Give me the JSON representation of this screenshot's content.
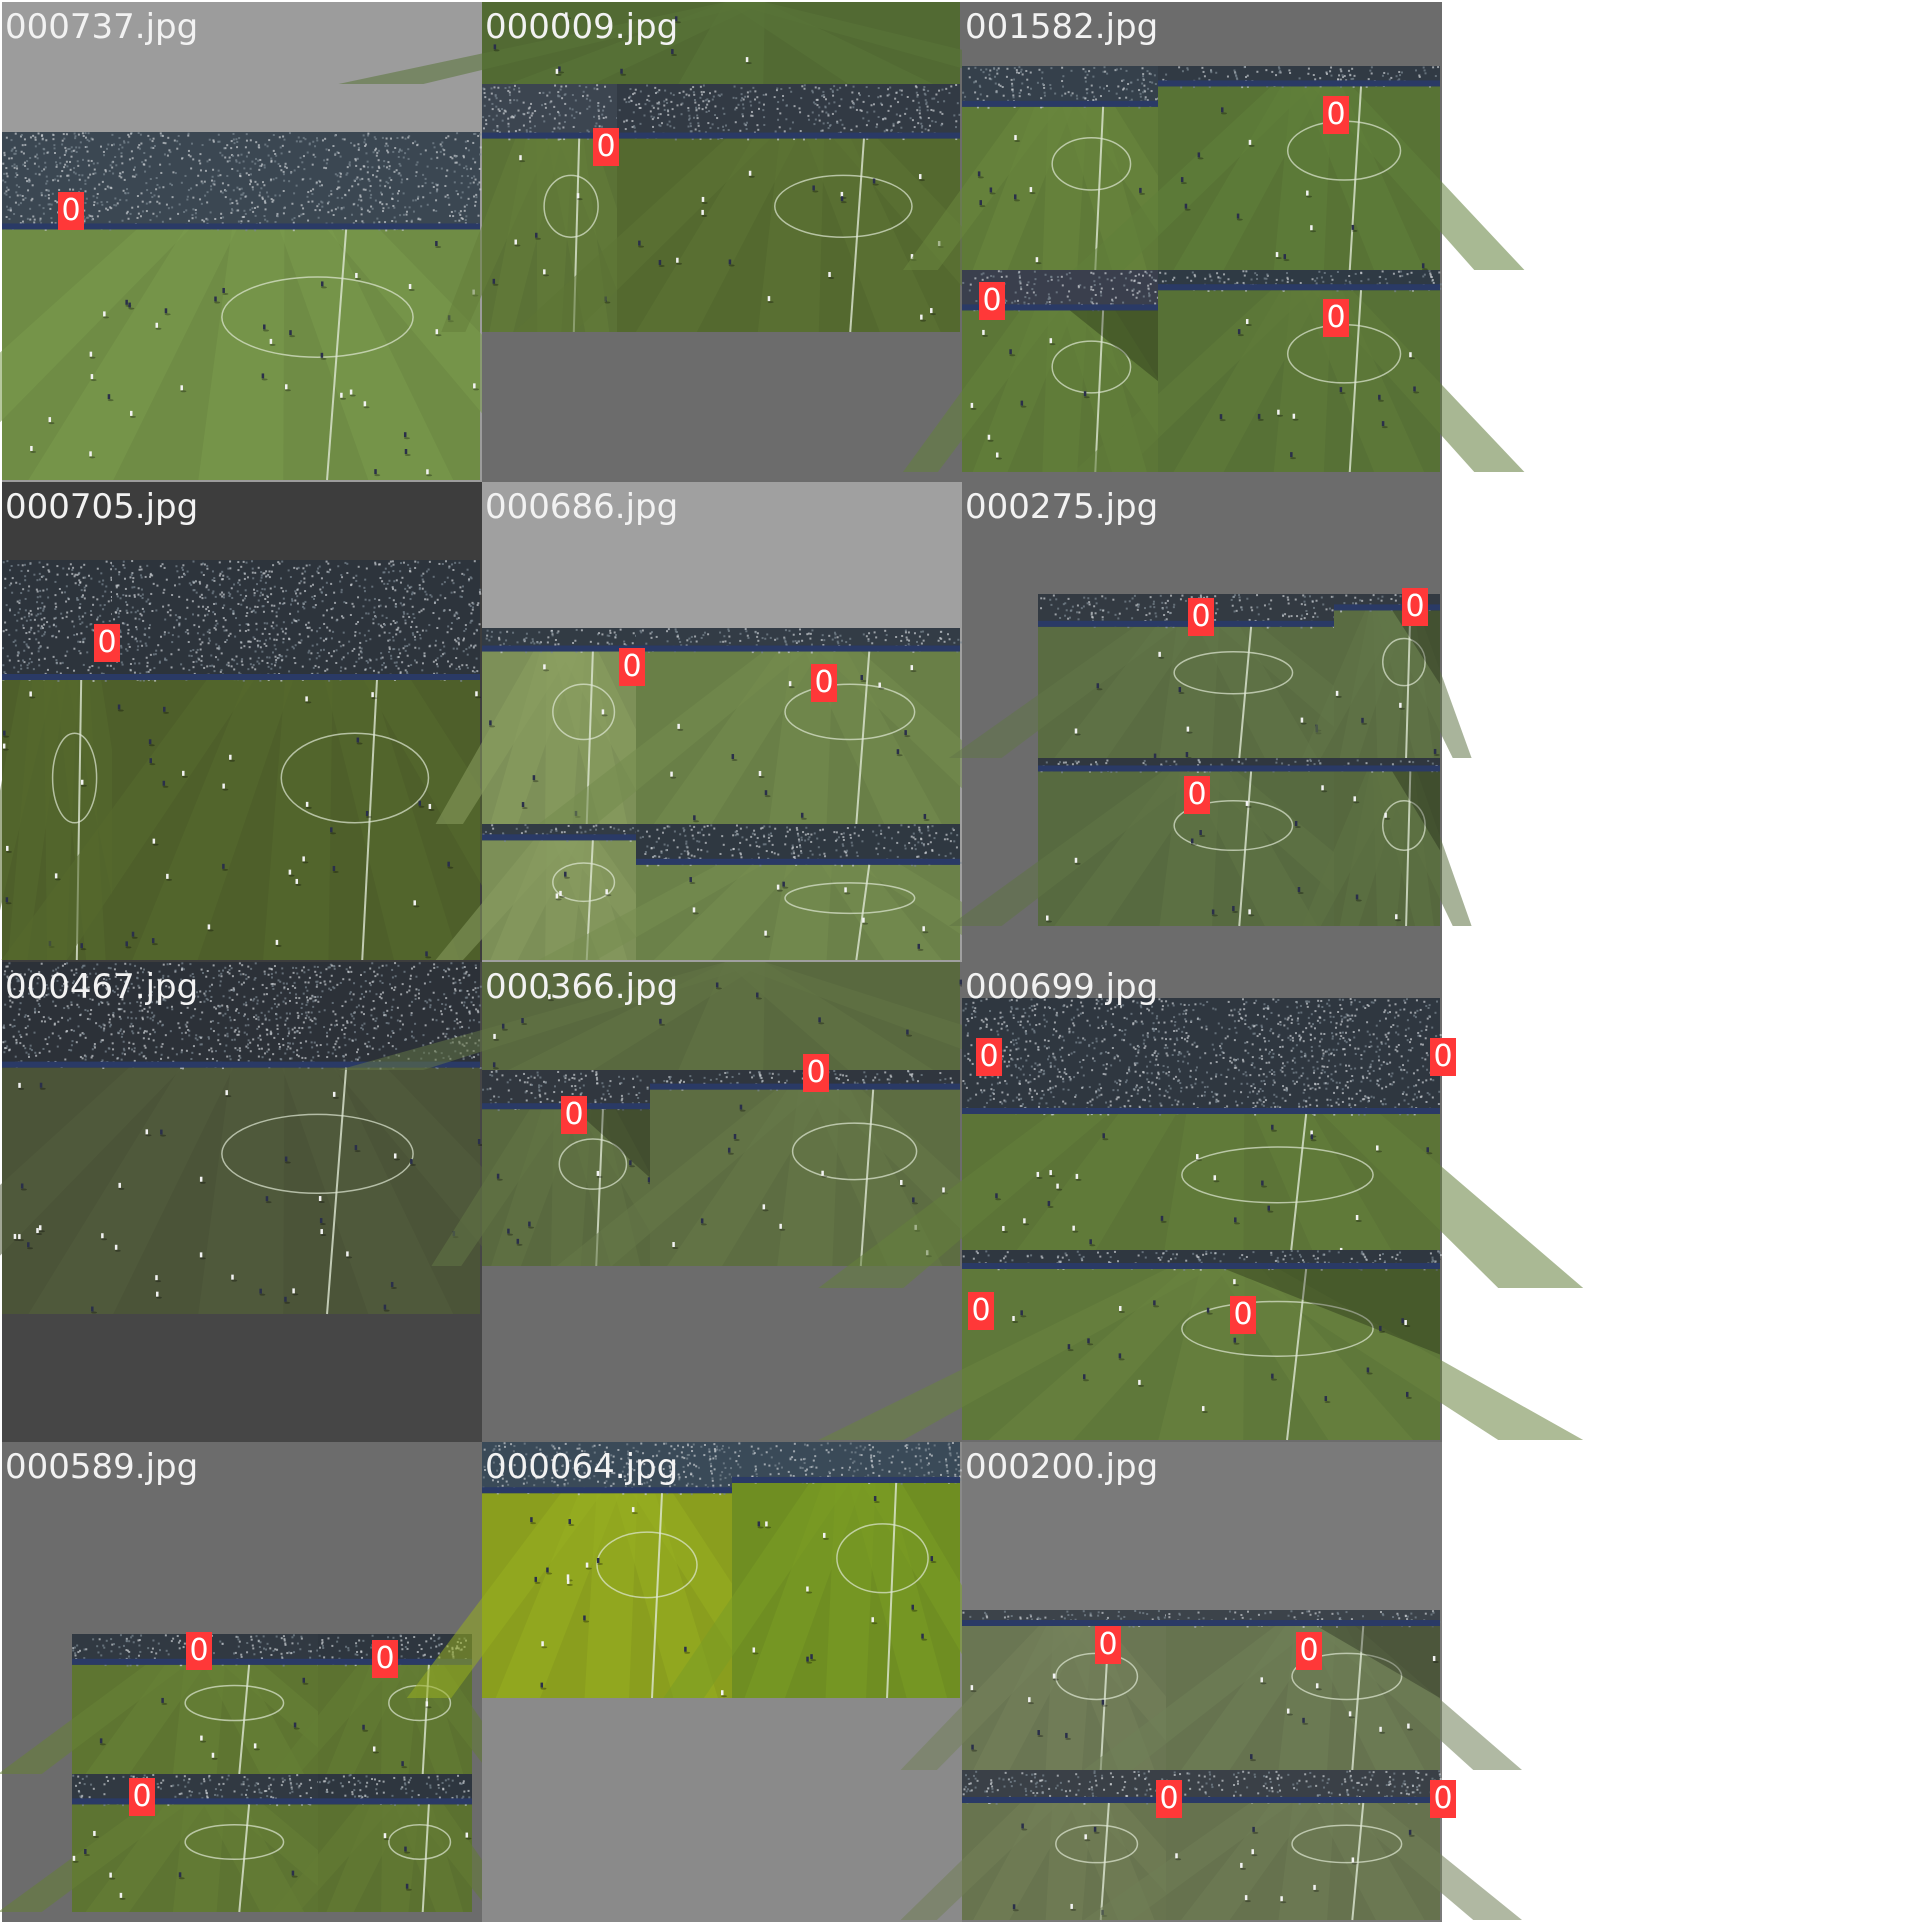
{
  "colors": {
    "box": "#ff3838",
    "text": "#f2f2f2"
  },
  "tiles": [
    {
      "filename": "000737.jpg",
      "fill": "#9c9c9c",
      "pieces": [
        {
          "style": "l",
          "grass": "#6f8c45",
          "crowd": "#3b4752",
          "crowdFrac": 0.28
        }
      ],
      "labels": [
        "0"
      ]
    },
    {
      "filename": "000009.jpg",
      "fill": "#6c6c6c",
      "pieces": [
        {
          "style": "m",
          "grass": "#5b7236",
          "crowd": "#3c4550",
          "crowdFrac": 0.22
        },
        {
          "style": "r",
          "grass": "#54692f",
          "crowd": "#323a44",
          "crowdFrac": 0.22
        },
        {
          "style": "t",
          "grass": "#526a33",
          "crowd": "#2e353d",
          "crowdFrac": 0.0
        }
      ],
      "labels": [
        "0"
      ]
    },
    {
      "filename": "001582.jpg",
      "fill": "#6c6c6c",
      "pieces": [
        {
          "style": "m",
          "grass": "#5f7a38",
          "crowd": "#35404b",
          "crowdFrac": 0.2
        },
        {
          "style": "m",
          "grass": "#587335",
          "crowd": "#313a44",
          "crowdFrac": 0.1
        },
        {
          "style": "s",
          "grass": "#5c7637",
          "crowd": "#3a3f4d",
          "crowdFrac": 0.2
        },
        {
          "style": "m",
          "grass": "#577136",
          "crowd": "#2f3a44",
          "crowdFrac": 0.1
        }
      ],
      "labels": [
        "0",
        "0",
        "0"
      ]
    },
    {
      "filename": "000705.jpg",
      "fill": "#3d3d3d",
      "pieces": [
        {
          "style": "m",
          "grass": "#4e5f2a",
          "crowd": "#2d343c",
          "crowdFrac": 0.3
        }
      ],
      "labels": [
        "0"
      ]
    },
    {
      "filename": "000686.jpg",
      "fill": "#a0a0a0",
      "pieces": [
        {
          "style": "l",
          "grass": "#7d9058",
          "crowd": "#323b44",
          "crowdFrac": 0.12
        },
        {
          "style": "m",
          "grass": "#697f47",
          "crowd": "#333c46",
          "crowdFrac": 0.12
        },
        {
          "style": "l",
          "grass": "#7c8f57",
          "crowd": "#323b44",
          "crowdFrac": 0.12
        },
        {
          "style": "m",
          "grass": "#6b8149",
          "crowd": "#2f3841",
          "crowdFrac": 0.3
        }
      ],
      "labels": [
        "0",
        "0"
      ]
    },
    {
      "filename": "000275.jpg",
      "fill": "#6c6c6c",
      "pieces": [
        {
          "style": "m",
          "grass": "#5a6c42",
          "crowd": "#333a42",
          "crowdFrac": 0.2
        },
        {
          "style": "s",
          "grass": "#5a6c42",
          "crowd": "#333a42",
          "crowdFrac": 0.1
        },
        {
          "style": "m",
          "grass": "#576a40",
          "crowd": "#30373f",
          "crowdFrac": 0.08
        },
        {
          "style": "s",
          "grass": "#56683e",
          "crowd": "#30373f",
          "crowdFrac": 0.08
        }
      ],
      "labels": [
        "0",
        "0",
        "0"
      ]
    },
    {
      "filename": "000467.jpg",
      "fill": "#464646",
      "pieces": [
        {
          "style": "m",
          "grass": "#4b5438",
          "crowd": "#2c3138",
          "crowdFrac": 0.3
        }
      ],
      "labels": []
    },
    {
      "filename": "000366.jpg",
      "fill": "#6c6c6c",
      "pieces": [
        {
          "style": "t",
          "grass": "#59693f",
          "crowd": "#2e3339",
          "crowdFrac": 0.0
        },
        {
          "style": "s",
          "grass": "#59693f",
          "crowd": "#31373f",
          "crowdFrac": 0.2
        },
        {
          "style": "m",
          "grass": "#5d6d42",
          "crowd": "#30363e",
          "crowdFrac": 0.1
        }
      ],
      "labels": [
        "0",
        "0"
      ]
    },
    {
      "filename": "000699.jpg",
      "fill": "#6c6c6c",
      "pieces": [
        {
          "style": "m",
          "grass": "#5c7437",
          "crowd": "#2f3740",
          "crowdFrac": 0.4
        },
        {
          "style": "s",
          "grass": "#5f783a",
          "crowd": "#2f3740",
          "crowdFrac": 0.1
        }
      ],
      "labels": [
        "0",
        "0",
        "0",
        "0"
      ]
    },
    {
      "filename": "000589.jpg",
      "fill": "#6c6c6c",
      "pieces": [
        {
          "style": "m",
          "grass": "#5e7531",
          "crowd": "#313942",
          "crowdFrac": 0.22
        },
        {
          "style": "m",
          "grass": "#5c7230",
          "crowd": "#2e363f",
          "crowdFrac": 0.22
        },
        {
          "style": "m",
          "grass": "#5d7432",
          "crowd": "#313942",
          "crowdFrac": 0.22
        },
        {
          "style": "m",
          "grass": "#5b7130",
          "crowd": "#2e363f",
          "crowdFrac": 0.22
        }
      ],
      "labels": [
        "0",
        "0",
        "0"
      ]
    },
    {
      "filename": "000064.jpg",
      "fill": "#8a8a8a",
      "pieces": [
        {
          "style": "m",
          "grass": "#8a9e1e",
          "crowd": "#3a4a58",
          "crowdFrac": 0.2
        },
        {
          "style": "m",
          "grass": "#6f8e22",
          "crowd": "#3a4a58",
          "crowdFrac": 0.16
        }
      ],
      "labels": []
    },
    {
      "filename": "000200.jpg",
      "fill": "#7a7a7a",
      "pieces": [
        {
          "style": "m",
          "grass": "#6a7653",
          "crowd": "#3c434a",
          "crowdFrac": 0.1
        },
        {
          "style": "s",
          "grass": "#66734f",
          "crowd": "#3c434a",
          "crowdFrac": 0.1
        },
        {
          "style": "m",
          "grass": "#68744f",
          "crowd": "#3a4047",
          "crowdFrac": 0.22
        },
        {
          "style": "m",
          "grass": "#66724e",
          "crowd": "#3a4047",
          "crowdFrac": 0.22
        }
      ],
      "labels": [
        "0",
        "0",
        "0",
        "0"
      ]
    }
  ]
}
